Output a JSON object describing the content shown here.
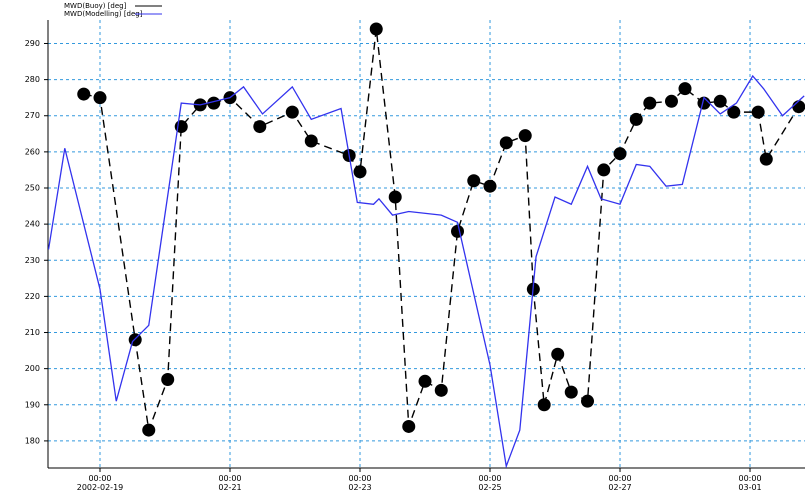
{
  "chart_data": {
    "type": "line",
    "xlim": [
      "2002-02-18T04:48",
      "2002-03-01T20:18"
    ],
    "ylim": [
      172.5,
      296.5
    ],
    "yticks": [
      180,
      190,
      200,
      210,
      220,
      230,
      240,
      250,
      260,
      270,
      280,
      290
    ],
    "xticks": [
      {
        "value": "2002-02-19T00:00",
        "label": "00:00 2002-02-19"
      },
      {
        "value": "2002-02-21T00:00",
        "label": "00:00 02-21"
      },
      {
        "value": "2002-02-23T00:00",
        "label": "00:00 02-23"
      },
      {
        "value": "2002-02-25T00:00",
        "label": "00:00 02-25"
      },
      {
        "value": "2002-02-27T00:00",
        "label": "00:00 02-27"
      },
      {
        "value": "2002-03-01T00:00",
        "label": "00:00 03-01"
      }
    ],
    "grid": true,
    "legend": "top-left",
    "series": [
      {
        "name": "MWD(Buoy) [deg]",
        "color": "#000000",
        "dashed": true,
        "markers": true,
        "x": [
          "2002-02-18T18:00",
          "2002-02-19T00:00",
          "2002-02-19T13:00",
          "2002-02-19T18:00",
          "2002-02-20T01:00",
          "2002-02-20T06:00",
          "2002-02-20T13:00",
          "2002-02-20T18:00",
          "2002-02-21T00:00",
          "2002-02-21T11:00",
          "2002-02-21T23:00",
          "2002-02-22T06:00",
          "2002-02-22T20:00",
          "2002-02-23T00:00",
          "2002-02-23T06:00",
          "2002-02-23T13:00",
          "2002-02-23T18:00",
          "2002-02-24T00:00",
          "2002-02-24T06:00",
          "2002-02-24T12:00",
          "2002-02-24T18:00",
          "2002-02-25T00:00",
          "2002-02-25T06:00",
          "2002-02-25T13:00",
          "2002-02-25T16:00",
          "2002-02-25T20:00",
          "2002-02-26T01:00",
          "2002-02-26T06:00",
          "2002-02-26T12:00",
          "2002-02-26T18:00",
          "2002-02-27T00:00",
          "2002-02-27T06:00",
          "2002-02-27T11:00",
          "2002-02-27T19:00",
          "2002-02-28T00:00",
          "2002-02-28T07:00",
          "2002-02-28T13:00",
          "2002-02-28T18:00",
          "2002-03-01T03:00",
          "2002-03-01T06:00",
          "2002-03-01T18:00"
        ],
        "values": [
          276,
          275,
          208,
          183,
          197,
          267,
          273,
          273.5,
          275,
          267,
          271,
          263,
          259,
          254.5,
          294,
          247.5,
          184,
          196.5,
          194,
          238,
          252,
          250.5,
          262.5,
          264.5,
          222,
          190,
          204,
          193.5,
          191,
          255,
          259.5,
          269,
          273.5,
          274,
          277.5,
          273.5,
          274,
          271,
          271,
          258,
          272.5
        ]
      },
      {
        "name": "MWD(Modelling) [deg]",
        "color": "#3333ee",
        "dashed": false,
        "markers": false,
        "x": [
          "2002-02-18T05:00",
          "2002-02-18T11:00",
          "2002-02-19T00:00",
          "2002-02-19T06:00",
          "2002-02-19T12:00",
          "2002-02-19T18:00",
          "2002-02-20T06:00",
          "2002-02-20T13:00",
          "2002-02-21T00:00",
          "2002-02-21T05:00",
          "2002-02-21T12:00",
          "2002-02-21T23:00",
          "2002-02-22T06:00",
          "2002-02-22T17:00",
          "2002-02-22T23:00",
          "2002-02-23T05:00",
          "2002-02-23T07:00",
          "2002-02-23T12:00",
          "2002-02-23T18:00",
          "2002-02-24T06:00",
          "2002-02-24T12:00",
          "2002-02-25T00:00",
          "2002-02-25T06:00",
          "2002-02-25T11:00",
          "2002-02-25T17:00",
          "2002-02-26T00:00",
          "2002-02-26T06:00",
          "2002-02-26T12:00",
          "2002-02-26T17:00",
          "2002-02-27T00:00",
          "2002-02-27T06:00",
          "2002-02-27T11:00",
          "2002-02-27T17:00",
          "2002-02-27T23:00",
          "2002-02-28T07:00",
          "2002-02-28T13:00",
          "2002-02-28T19:00",
          "2002-03-01T01:00",
          "2002-03-01T05:00",
          "2002-03-01T12:00",
          "2002-03-01T20:00"
        ],
        "values": [
          233,
          261,
          222,
          191,
          207.5,
          212,
          273.5,
          273,
          275,
          278,
          270.5,
          278,
          269,
          272,
          246,
          245.5,
          247,
          242.5,
          243.5,
          242.5,
          240.5,
          201,
          173,
          183,
          231,
          247.5,
          245.5,
          256,
          247,
          245.5,
          256.5,
          256,
          250.5,
          251,
          275,
          270.5,
          273.5,
          281,
          277.5,
          270,
          275.5
        ]
      }
    ]
  }
}
